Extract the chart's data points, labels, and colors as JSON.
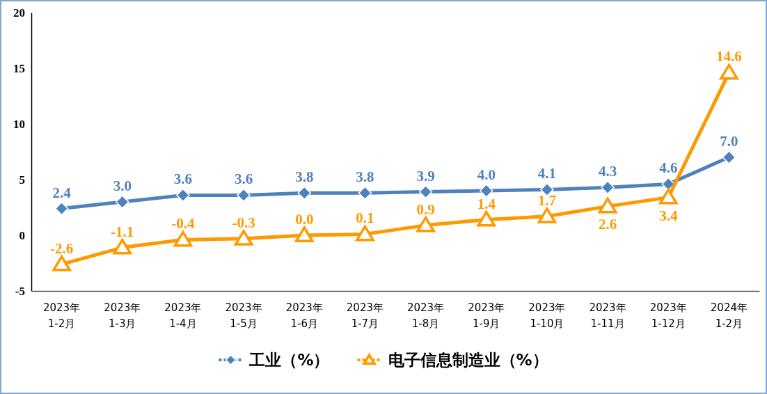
{
  "chart_data": {
    "type": "line",
    "categories": [
      "2023年\n1-2月",
      "2023年\n1-3月",
      "2023年\n1-4月",
      "2023年\n1-5月",
      "2023年\n1-6月",
      "2023年\n1-7月",
      "2023年\n1-8月",
      "2023年\n1-9月",
      "2023年\n1-10月",
      "2023年\n1-11月",
      "2023年\n1-12月",
      "2024年\n1-2月"
    ],
    "series": [
      {
        "name": "工业（%）",
        "color": "#4f81bd",
        "marker": "diamond",
        "values": [
          2.4,
          3.0,
          3.6,
          3.6,
          3.8,
          3.8,
          3.9,
          4.0,
          4.1,
          4.3,
          4.6,
          7.0
        ],
        "value_labels": [
          "2.4",
          "3.0",
          "3.6",
          "3.6",
          "3.8",
          "3.8",
          "3.9",
          "4.0",
          "4.1",
          "4.3",
          "4.6",
          "7.0"
        ]
      },
      {
        "name": "电子信息制造业（%）",
        "color": "#ff9900",
        "marker": "triangle",
        "values": [
          -2.6,
          -1.1,
          -0.4,
          -0.3,
          0.0,
          0.1,
          0.9,
          1.4,
          1.7,
          2.6,
          3.4,
          14.6
        ],
        "value_labels": [
          "-2.6",
          "-1.1",
          "-0.4",
          "-0.3",
          "0.0",
          "0.1",
          "0.9",
          "1.4",
          "1.7",
          "2.6",
          "3.4",
          "14.6"
        ]
      }
    ],
    "ylim": [
      -5,
      20
    ],
    "yticks": [
      -5,
      0,
      5,
      10,
      15,
      20
    ],
    "grid": false,
    "legend": "bottom",
    "line_style": "solid"
  }
}
